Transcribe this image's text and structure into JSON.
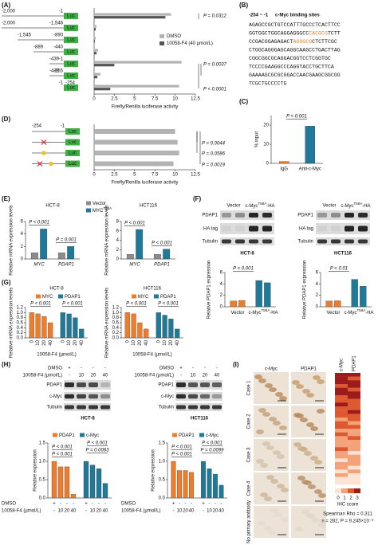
{
  "panel_a": {
    "letter": "(A)",
    "luc_label": "Luc",
    "constructs": [
      {
        "labels": [
          "-2,000",
          "-1"
        ]
      },
      {
        "labels": [
          "-2,000",
          "-1,546"
        ]
      },
      {
        "labels": [
          "-1,545",
          "-890"
        ]
      },
      {
        "labels": [
          "-889",
          "-440"
        ]
      },
      {
        "labels": [
          "-439",
          "-1"
        ]
      },
      {
        "labels": [
          "-439",
          "-255"
        ]
      },
      {
        "labels": [
          "-254",
          "-1"
        ]
      }
    ],
    "series": [
      {
        "name": "DMSO",
        "color": "#b3b3b3",
        "values": [
          9.5,
          0.3,
          0.2,
          0.5,
          10.8,
          0.8,
          10.5
        ]
      },
      {
        "name": "10058-F4 (40 µmol/L)",
        "color": "#555555",
        "values": [
          8.8,
          0.2,
          0.1,
          0.3,
          2.5,
          0.4,
          2.0
        ]
      }
    ],
    "xlim": [
      0,
      12.5
    ],
    "xticks": [
      0,
      2.5,
      5,
      7.5,
      10,
      12.5
    ],
    "xlabel": "Firefly/Renilla luciferase activity",
    "annotations": [
      "P = 0.0312",
      "P = 0.0037",
      "P < 0.0001"
    ]
  },
  "panel_b": {
    "letter": "(B)",
    "title": "-254 ~ -1",
    "legend": "c-Myc binding sites",
    "lines": [
      [
        {
          "text": "AGAGCCGCTGTCCATTTGCCCTCACTTCC"
        }
      ],
      [
        {
          "text": "GGTGGCTGGCAGGAGGGCC"
        },
        {
          "text": "CACGCG",
          "highlight": true
        },
        {
          "text": "TCTT"
        }
      ],
      [
        {
          "text": "CCGACGGAGAGACT"
        },
        {
          "text": "AGGGCG",
          "highlight": true
        },
        {
          "text": "CTCTTCGC"
        }
      ],
      [
        {
          "text": "CTGGCAGGGAGCAGGCAAGCCTGACTTAG"
        }
      ],
      [
        {
          "text": "CGGCGGCGCAGGACGGTCCTCGGTGC"
        }
      ],
      [
        {
          "text": "TCCCCGAAGGCCCAGGTACCTGCTTCA"
        }
      ],
      [
        {
          "text": "GAAAAGCGCGCGGACCAACGAAGCGGCGG"
        }
      ],
      [
        {
          "text": "TCGCTGCCCCTG"
        }
      ]
    ]
  },
  "panel_c": {
    "letter": "(C)",
    "chart": {
      "type": "bar",
      "ylabel": "% input",
      "categories": [
        "IgG",
        "Anti-c-Myc"
      ],
      "series": [
        {
          "colors": [
            "#f07c2a",
            "#1f7a99"
          ],
          "values": [
            1,
            19.5
          ]
        }
      ],
      "ylim": [
        0,
        25
      ],
      "yticks": [
        0,
        10,
        20
      ],
      "annotations": [
        "P < 0.001"
      ]
    }
  },
  "panel_d": {
    "letter": "(D)",
    "luc_label": "Luc",
    "constructs": [
      {
        "labels": [
          "-254",
          "-1"
        ]
      }
    ],
    "series": [
      {
        "color": "#b3b3b3",
        "values": [
          10,
          10.3,
          10.5,
          9.8
        ]
      }
    ],
    "xlim": [
      0,
      12.5
    ],
    "xticks": [
      0,
      2.5,
      5,
      7.5,
      10,
      12.5
    ],
    "xlabel": "Firefly/Renilla luciferase activity",
    "annotations": [
      "P = 0.0044",
      "P = 0.0586",
      "P = 0.0019"
    ]
  },
  "panel_e": {
    "letter": "(E)",
    "charts": [
      {
        "type": "bar",
        "title": "HCT-8",
        "ylabel": "Relative mRNA expression levels",
        "categories": [
          "MYC",
          "PDAP1"
        ],
        "legend": true,
        "series": [
          {
            "name": "Vector",
            "color": "#8c8c8c",
            "values": [
              1,
              1
            ]
          },
          {
            "name": "MYC",
            "name_sup": "T58A",
            "color": "#1f7a99",
            "values": [
              4.8,
              2.0
            ]
          }
        ],
        "ylim": [
          0,
          6
        ],
        "yticks": [
          0,
          2,
          4,
          6
        ],
        "annotations": [
          "P < 0.001",
          "P = 0.001"
        ]
      },
      {
        "type": "bar",
        "title": "HCT116",
        "ylabel": "Relative mRNA expression levels",
        "categories": [
          "MYC",
          "PDAP1"
        ],
        "series": [
          {
            "color": "#8c8c8c",
            "values": [
              1,
              1
            ]
          },
          {
            "color": "#1f7a99",
            "values": [
              6.3,
              2.1
            ]
          }
        ],
        "ylim": [
          0,
          8
        ],
        "yticks": [
          0,
          2,
          4,
          6,
          8
        ],
        "annotations": [
          "P < 0.001",
          "P < 0.001"
        ]
      }
    ]
  },
  "panel_f": {
    "letter": "(F)",
    "blots": [
      {
        "headers": [
          {
            "name": "Vector"
          },
          {
            "name": "c-Myc",
            "name_sup": "T58A",
            "name_suffix": "-HA"
          }
        ],
        "rows": [
          "PDAP1",
          "HA tag",
          "Tubulin"
        ],
        "cell_line": "HCT-8"
      },
      {
        "headers": [
          {
            "name": "Vector"
          },
          {
            "name": "c-Myc",
            "name_sup": "T58A",
            "name_suffix": "-HA"
          }
        ],
        "rows": [
          "PDAP1",
          "HA tag",
          "Tubulin"
        ],
        "cell_line": "HCT116"
      }
    ],
    "charts": [
      {
        "type": "bar",
        "cluster": "series",
        "ylabel": "Relative PDAP1 expression",
        "series": [
          {
            "name": "Vector",
            "color": "#f07c2a",
            "values": [
              1,
              1.1
            ]
          },
          {
            "name": "c-Myc",
            "name_sup": "T58A",
            "name_suffix": "-HA",
            "color": "#1f7a99",
            "values": [
              4.6,
              4.2
            ]
          }
        ],
        "ylim": [
          0,
          6
        ],
        "yticks": [
          0,
          2,
          4,
          6
        ],
        "annotations": [
          "P < 0.001"
        ]
      },
      {
        "type": "bar",
        "cluster": "series",
        "ylabel": "Relative PDAP1 expression",
        "series": [
          {
            "name": "Vector",
            "color": "#f07c2a",
            "values": [
              1,
              1.05
            ]
          },
          {
            "name": "c-Myc",
            "name_sup": "T58A",
            "name_suffix": "-HA",
            "color": "#1f7a99",
            "values": [
              4.8,
              3.6
            ]
          }
        ],
        "ylim": [
          0,
          6
        ],
        "yticks": [
          0,
          2,
          4,
          6
        ],
        "annotations": [
          "P < 0.01"
        ]
      }
    ]
  },
  "panel_g": {
    "letter": "(G)",
    "charts": [
      {
        "type": "bar",
        "cluster": "series",
        "title": "HCT-8",
        "ylabel": "Relative mRNA expression levels",
        "xlabel": "10058-F4 (µmol/L)",
        "legend": true,
        "categories": [
          "0",
          "10",
          "20",
          "40"
        ],
        "series": [
          {
            "name": "MYC",
            "color": "#f07c2a",
            "values": [
              1,
              0.95,
              0.85,
              0.6
            ]
          },
          {
            "name": "PDAP1",
            "color": "#1f7a99",
            "values": [
              1,
              0.95,
              0.8,
              0.35
            ]
          }
        ],
        "ylim": [
          0,
          1.2
        ],
        "yticks": [
          {
            "value": 0,
            "label": "0.0"
          },
          {
            "value": 0.2,
            "label": "0.2"
          },
          {
            "value": 0.4,
            "label": "0.4"
          },
          {
            "value": 0.6,
            "label": "0.6"
          },
          {
            "value": 0.8,
            "label": "0.8"
          },
          {
            "value": 1,
            "label": "1.0"
          },
          {
            "value": 1.2,
            "label": "1.2"
          }
        ],
        "annotations": [
          "P < 0.001",
          "P < 0.001"
        ]
      },
      {
        "type": "bar",
        "cluster": "series",
        "title": "HCT116",
        "ylabel": "Relative mRNA expression levels",
        "xlabel": "10058-F4 (µmol/L)",
        "legend": true,
        "categories": [
          "0",
          "10",
          "20",
          "40"
        ],
        "series": [
          {
            "name": "MYC",
            "color": "#f07c2a",
            "values": [
              1,
              0.95,
              0.6,
              0.35
            ]
          },
          {
            "name": "PDAP1",
            "color": "#1f7a99",
            "values": [
              1,
              0.9,
              0.75,
              0.35
            ]
          }
        ],
        "ylim": [
          0,
          1.2
        ],
        "yticks": [
          {
            "value": 0,
            "label": "0.0"
          },
          {
            "value": 0.2,
            "label": "0.2"
          },
          {
            "value": 0.4,
            "label": "0.4"
          },
          {
            "value": 0.6,
            "label": "0.6"
          },
          {
            "value": 0.8,
            "label": "0.8"
          },
          {
            "value": 1,
            "label": "1.0"
          },
          {
            "value": 1.2,
            "label": "1.2"
          }
        ],
        "annotations": [
          "P < 0.001",
          "P < 0.001"
        ]
      }
    ]
  },
  "panel_h": {
    "letter": "(H)",
    "blots": [
      {
        "conditions": [
          {
            "label": "DMSO",
            "values": [
              "+",
              "-",
              "-",
              "-"
            ]
          },
          {
            "label": "10058-F4 (µmol/L)",
            "values": [
              "-",
              "10",
              "20",
              "40"
            ]
          }
        ],
        "rows": [
          "PDAP1",
          "c-Myc",
          "Tubulin"
        ],
        "cell_line": "HCT-8"
      },
      {
        "conditions": [
          {
            "label": "DMSO",
            "values": [
              "+",
              "-",
              "-",
              "-"
            ]
          },
          {
            "label": "10058-F4 (µmol/L)",
            "values": [
              "-",
              "10",
              "20",
              "40"
            ]
          }
        ],
        "rows": [
          "PDAP1",
          "c-Myc",
          "Tubulin"
        ],
        "cell_line": "HCT116"
      }
    ],
    "charts": [
      {
        "type": "bar",
        "cluster": "series",
        "ylabel": "Relative expression",
        "legend": true,
        "conditions": [
          {
            "label": "DMSO",
            "values": [
              "+",
              "-",
              "-",
              "-"
            ]
          },
          {
            "label": "10058-F4 (µmol/L)",
            "values": [
              "-",
              "10",
              "20",
              "40"
            ]
          }
        ],
        "series": [
          {
            "name": "PDAP1",
            "color": "#f07c2a",
            "values": [
              1,
              0.85,
              0.85,
              0.1
            ]
          },
          {
            "name": "c-Myc",
            "color": "#1f7a99",
            "values": [
              1,
              0.9,
              0.8,
              0.4
            ]
          }
        ],
        "ylim": [
          0,
          1.5
        ],
        "yticks": [
          {
            "value": 0,
            "label": "0.0"
          },
          {
            "value": 0.5,
            "label": "0.5"
          },
          {
            "value": 1,
            "label": "1.0"
          },
          {
            "value": 1.5,
            "label": "1.5"
          }
        ],
        "annotations": [
          "P < 0.001",
          "P < 0.001",
          "P < 0.001",
          "P = 0.0083"
        ]
      },
      {
        "type": "bar",
        "cluster": "series",
        "ylabel": "Relative expression",
        "legend": true,
        "conditions": [
          {
            "label": "DMSO",
            "values": [
              "+",
              "-",
              "-",
              "-"
            ]
          },
          {
            "label": "10058-F4 (µmol/L)",
            "values": [
              "-",
              "10",
              "20",
              "40"
            ]
          }
        ],
        "series": [
          {
            "name": "PDAP1",
            "color": "#f07c2a",
            "values": [
              1,
              0.75,
              0.75,
              0.7
            ]
          },
          {
            "name": "c-Myc",
            "color": "#1f7a99",
            "values": [
              1,
              0.8,
              0.65,
              0.35
            ]
          }
        ],
        "ylim": [
          0,
          1.5
        ],
        "yticks": [
          {
            "value": 0,
            "label": "0.0"
          },
          {
            "value": 0.5,
            "label": "0.5"
          },
          {
            "value": 1,
            "label": "1.0"
          },
          {
            "value": 1.5,
            "label": "1.5"
          }
        ],
        "annotations": [
          "P < 0.001",
          "P < 0.001",
          "P < 0.001",
          "P = 0.0099"
        ]
      }
    ]
  },
  "panel_i": {
    "letter": "(I)",
    "columns": [
      "c-Myc",
      "PDAP1"
    ],
    "cases": [
      "Case 1",
      "Case 2",
      "Case 3",
      "Case 4",
      "No primary antibody"
    ],
    "heatmap": {
      "columns": [
        "c-Myc",
        "PDAP1"
      ],
      "colors": [
        "#fde3d4",
        "#f4a27a",
        "#dd5a30",
        "#9c1c1c"
      ],
      "series": [
        {
          "values": [
            3,
            3,
            3,
            2,
            3,
            3,
            2,
            2,
            3,
            2,
            2,
            2,
            1,
            2,
            2,
            1,
            2,
            1,
            1,
            1,
            2,
            1,
            1,
            0,
            1,
            1,
            0,
            1,
            0,
            0
          ]
        },
        {
          "values": [
            3,
            2,
            3,
            3,
            2,
            3,
            3,
            2,
            2,
            2,
            3,
            2,
            2,
            1,
            2,
            1,
            1,
            2,
            1,
            1,
            1,
            0,
            1,
            1,
            1,
            0,
            1,
            0,
            0,
            0
          ]
        }
      ],
      "scale": [
        0,
        1,
        2,
        3
      ],
      "label": "IHC score"
    },
    "stat": "Spearman Rho = 0.311",
    "n": "n = 282, P = 9.245×10⁻⁹"
  }
}
